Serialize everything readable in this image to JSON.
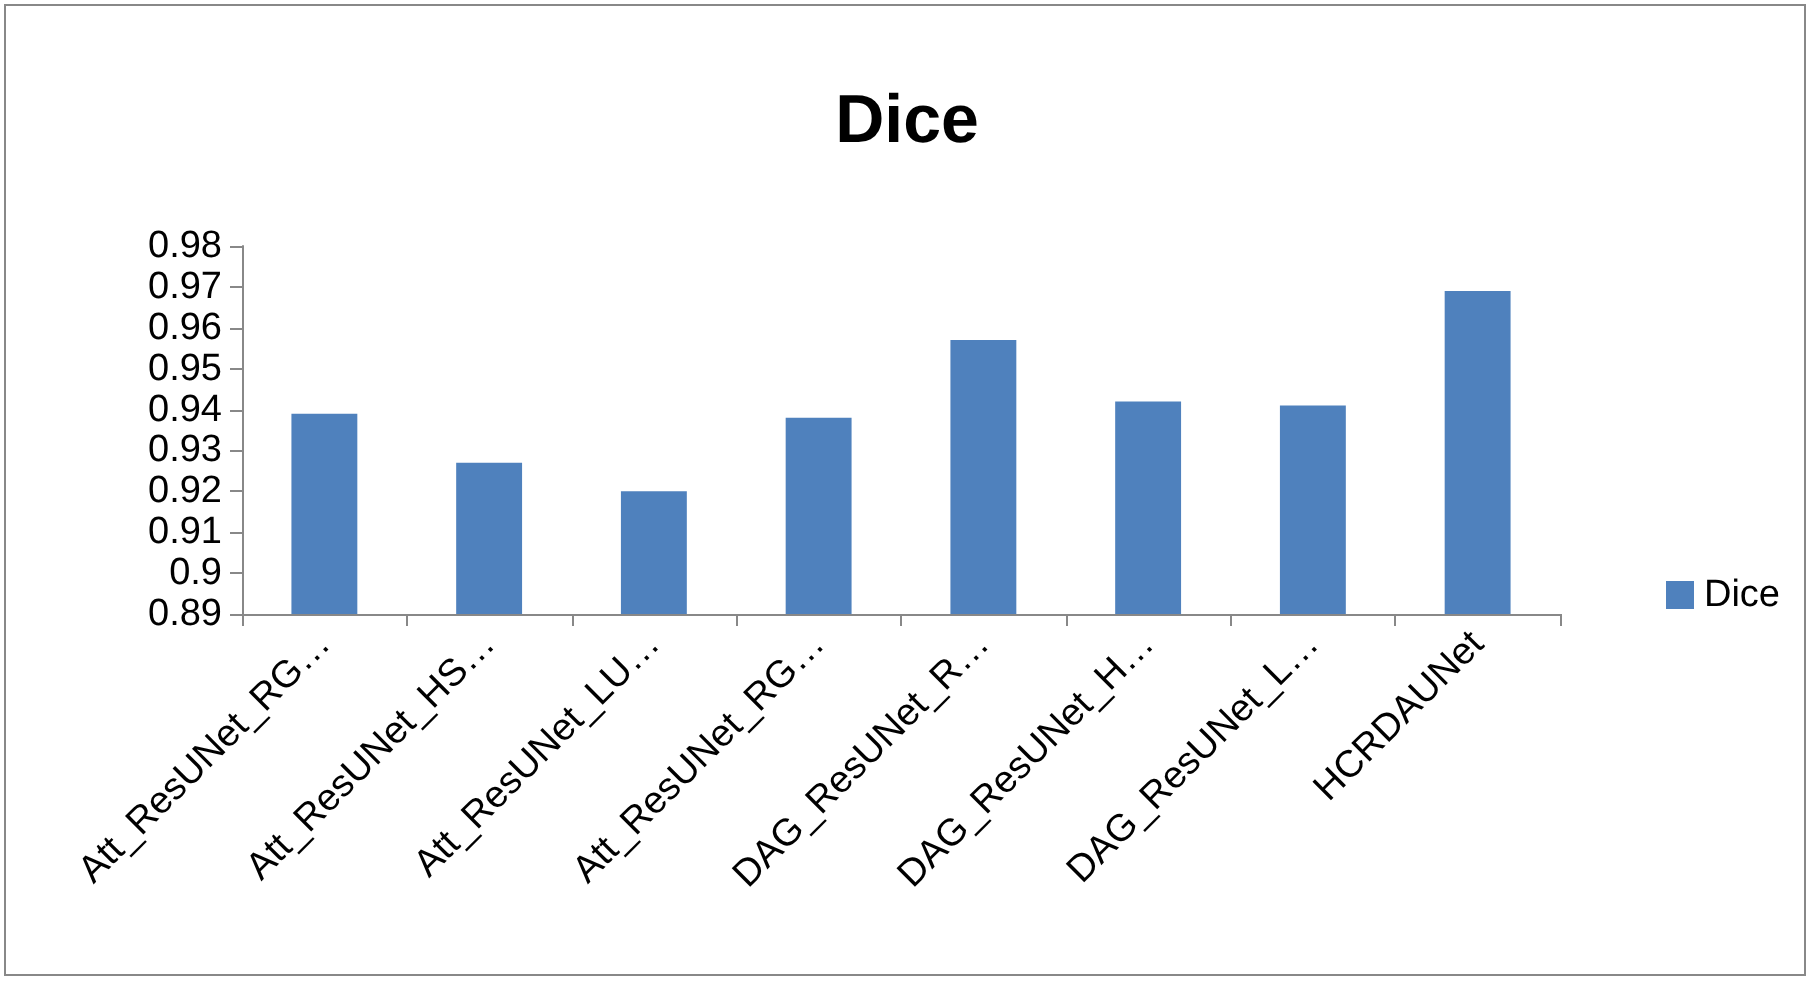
{
  "chart_data": {
    "type": "bar",
    "title": "Dice",
    "categories": [
      "Att_ResUNet_RG…",
      "Att_ResUNet_HS…",
      "Att_ResUNet_LU…",
      "Att_ResUNet_RG…",
      "DAG_ResUNet_R…",
      "DAG_ResUNet_H…",
      "DAG_ResUNet_L…",
      "HCRDAUNet"
    ],
    "series": [
      {
        "name": "Dice",
        "color": "#4f81bd",
        "values": [
          0.939,
          0.927,
          0.92,
          0.938,
          0.957,
          0.942,
          0.941,
          0.969
        ]
      }
    ],
    "ylim": [
      0.89,
      0.98
    ],
    "yticks": [
      0.89,
      0.9,
      0.91,
      0.92,
      0.93,
      0.94,
      0.95,
      0.96,
      0.97,
      0.98
    ],
    "grid": false,
    "legend": "right"
  }
}
